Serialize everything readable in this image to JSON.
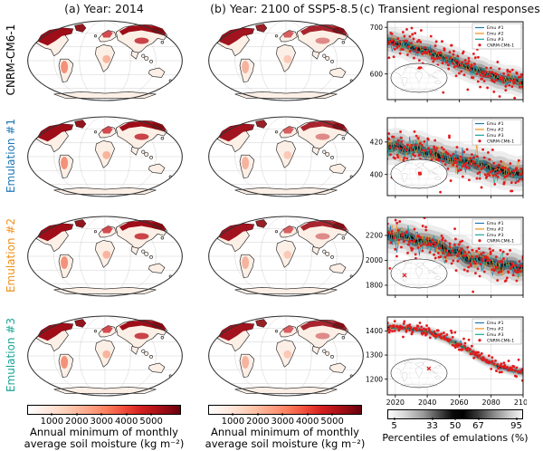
{
  "titles": {
    "a": "(a) Year: 2014",
    "b": "(b) Year: 2100 of SSP5-8.5",
    "c": "(c) Transient regional responses"
  },
  "rows": [
    {
      "label": "CNRM-CM6-1",
      "color": "#000000"
    },
    {
      "label": "Emulation #1",
      "color": "#1f77b4"
    },
    {
      "label": "Emulation #2",
      "color": "#f0901a"
    },
    {
      "label": "Emulation #3",
      "color": "#1ba596"
    }
  ],
  "legend": [
    {
      "label": "Emu #1",
      "color": "#1f77b4",
      "marker": "line"
    },
    {
      "label": "Emu #2",
      "color": "#f0901a",
      "marker": "line"
    },
    {
      "label": "Emu #3",
      "color": "#1ba596",
      "marker": "line"
    },
    {
      "label": "CNRM-CM6-1",
      "color": "#e31a1c",
      "marker": "dot"
    }
  ],
  "soil_colorbar": {
    "ticks": [
      1000,
      2000,
      3000,
      4000,
      5000
    ],
    "vmin": 0,
    "vmax": 6200,
    "label_line1": "Annual minimum of monthly",
    "label_line2": "average soil moisture (kg m⁻²)"
  },
  "percentile_colorbar": {
    "ticks": [
      5,
      33,
      50,
      67,
      95
    ],
    "vmin": 0,
    "vmax": 100,
    "label": "Percentiles of emulations (%)"
  },
  "chart_data": [
    {
      "type": "scatter+line",
      "region": "northern-europe",
      "highlight": "fill",
      "x_min": 2015,
      "x_max": 2100,
      "x_ticks": [
        2020,
        2040,
        2060,
        2080,
        2100
      ],
      "show_x_labels": false,
      "y_min": 545,
      "y_max": 712,
      "y_ticks": [
        600,
        700
      ],
      "trend_x": [
        2015,
        2025,
        2035,
        2045,
        2055,
        2065,
        2075,
        2085,
        2100
      ],
      "trend_y": [
        670,
        664,
        654,
        642,
        629,
        616,
        603,
        592,
        581
      ],
      "scatter_sd": 17,
      "line_sd": 7,
      "series": [
        "Emu #1",
        "Emu #2",
        "Emu #3",
        "CNRM-CM6-1"
      ]
    },
    {
      "type": "scatter+line",
      "region": "central-africa",
      "highlight": "fill",
      "x_min": 2015,
      "x_max": 2100,
      "x_ticks": [
        2020,
        2040,
        2060,
        2080,
        2100
      ],
      "show_x_labels": false,
      "y_min": 387,
      "y_max": 435,
      "y_ticks": [
        400,
        420
      ],
      "trend_x": [
        2015,
        2025,
        2035,
        2045,
        2055,
        2065,
        2075,
        2085,
        2100
      ],
      "trend_y": [
        418,
        417,
        415.5,
        413.5,
        411,
        408,
        405.5,
        403,
        400.5
      ],
      "scatter_sd": 6,
      "line_sd": 3.5,
      "series": [
        "Emu #1",
        "Emu #2",
        "Emu #3",
        "CNRM-CM6-1"
      ]
    },
    {
      "type": "scatter+line",
      "region": "west-south-america",
      "highlight": "cross",
      "x_min": 2015,
      "x_max": 2100,
      "x_ticks": [
        2020,
        2040,
        2060,
        2080,
        2100
      ],
      "show_x_labels": false,
      "y_min": 1720,
      "y_max": 2345,
      "y_ticks": [
        1800,
        2000,
        2200
      ],
      "trend_x": [
        2015,
        2025,
        2035,
        2045,
        2055,
        2065,
        2075,
        2085,
        2100
      ],
      "trend_y": [
        2195,
        2185,
        2160,
        2120,
        2070,
        2025,
        1985,
        1955,
        1935
      ],
      "scatter_sd": 75,
      "line_sd": 45,
      "series": [
        "Emu #1",
        "Emu #2",
        "Emu #3",
        "CNRM-CM6-1"
      ]
    },
    {
      "type": "scatter+line",
      "region": "south-asia",
      "highlight": "cross",
      "x_min": 2015,
      "x_max": 2100,
      "x_ticks": [
        2020,
        2040,
        2060,
        2080,
        2100
      ],
      "show_x_labels": true,
      "y_min": 1135,
      "y_max": 1458,
      "y_ticks": [
        1200,
        1300,
        1400
      ],
      "trend_x": [
        2015,
        2025,
        2035,
        2045,
        2055,
        2065,
        2075,
        2085,
        2100
      ],
      "trend_y": [
        1416,
        1412,
        1404,
        1388,
        1360,
        1323,
        1284,
        1250,
        1228
      ],
      "scatter_sd": 13,
      "line_sd": 6,
      "series": [
        "Emu #1",
        "Emu #2",
        "Emu #3",
        "CNRM-CM6-1"
      ]
    }
  ]
}
